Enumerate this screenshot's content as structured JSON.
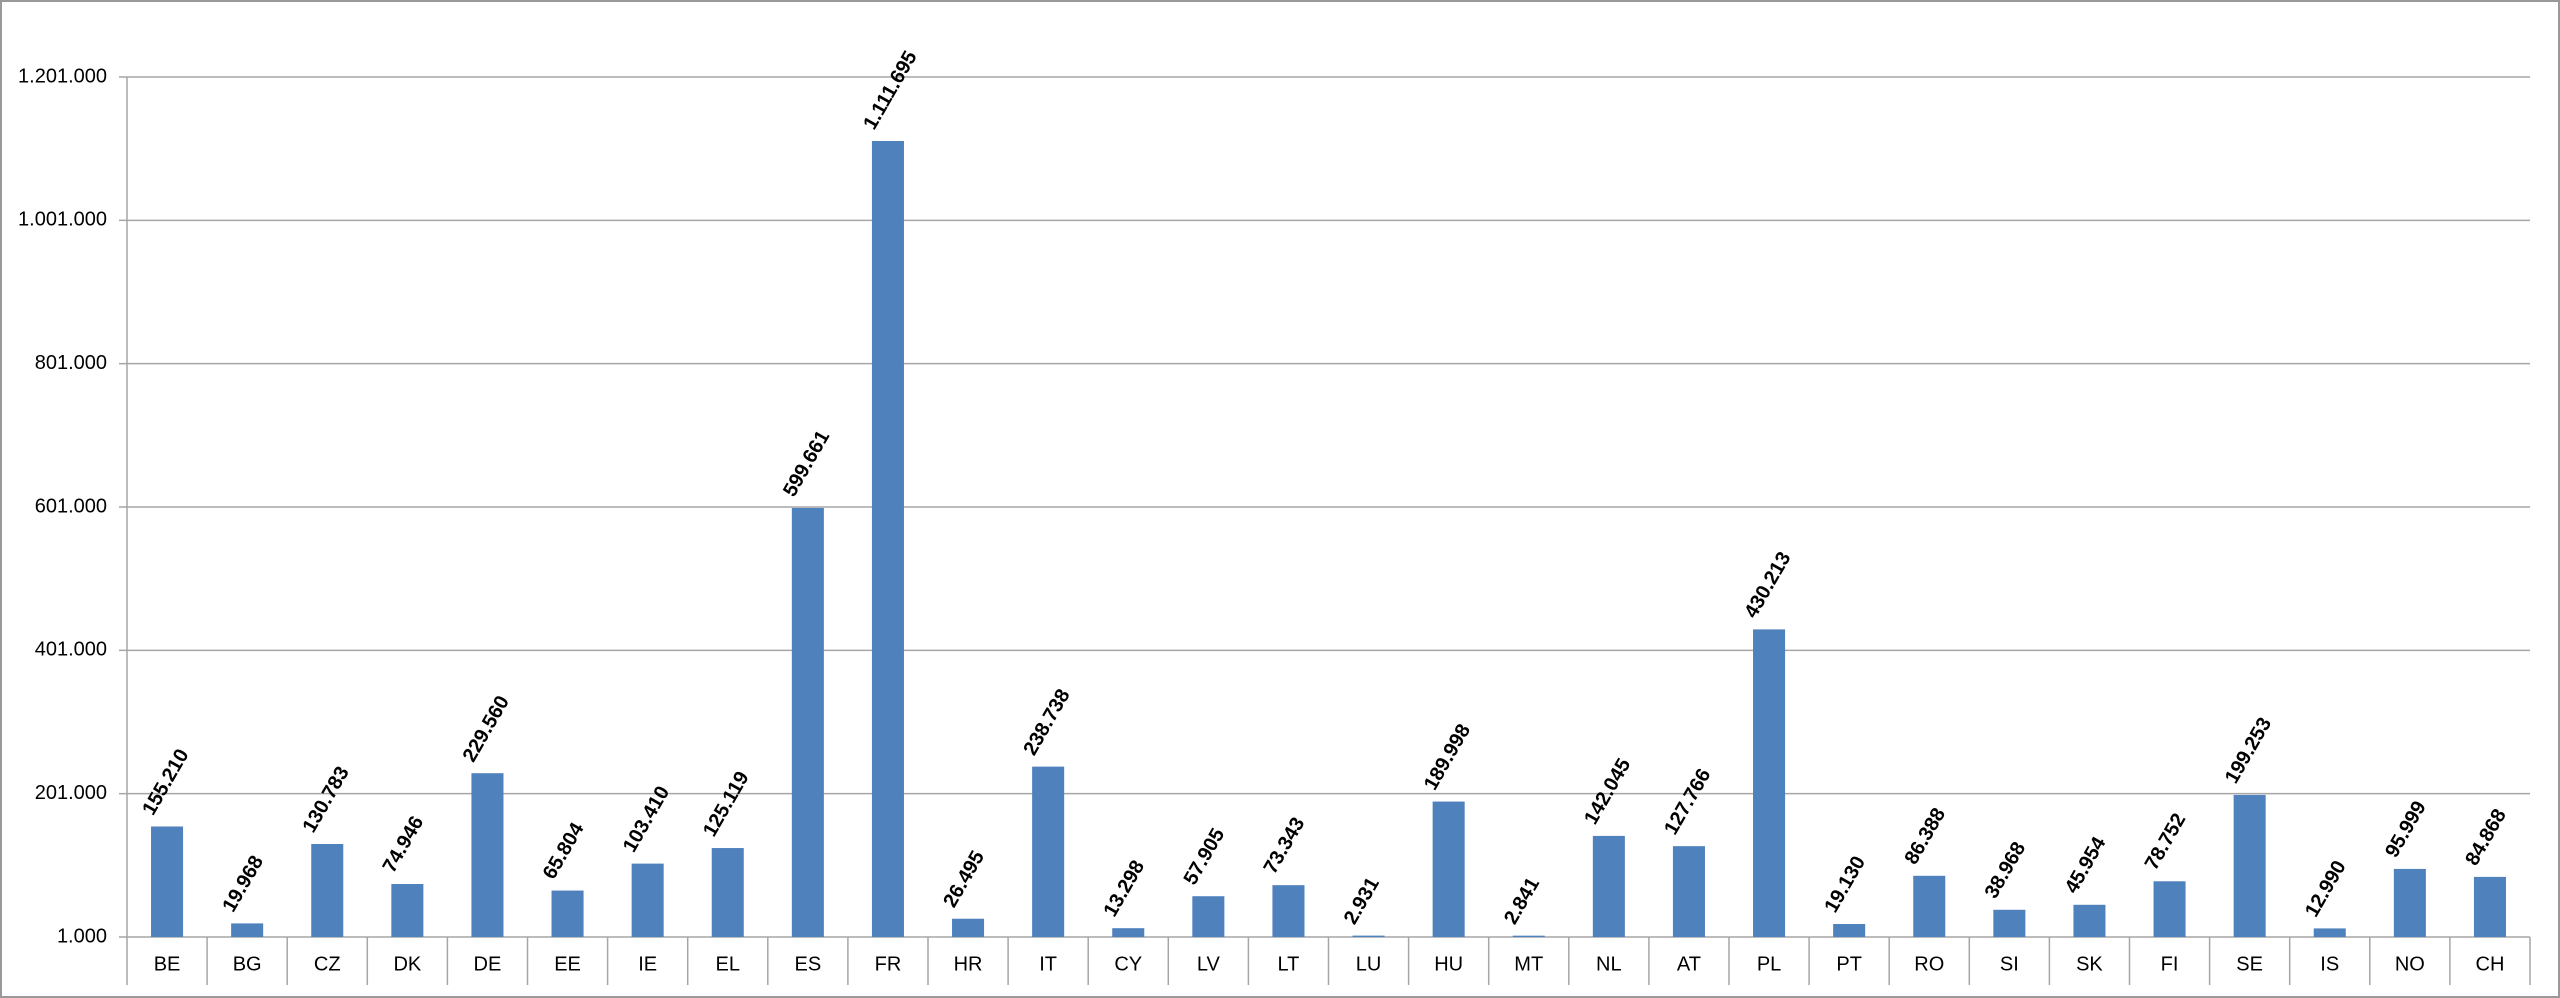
{
  "chart_data": {
    "type": "bar",
    "categories": [
      "BE",
      "BG",
      "CZ",
      "DK",
      "DE",
      "EE",
      "IE",
      "EL",
      "ES",
      "FR",
      "HR",
      "IT",
      "CY",
      "LV",
      "LT",
      "LU",
      "HU",
      "MT",
      "NL",
      "AT",
      "PL",
      "PT",
      "RO",
      "SI",
      "SK",
      "FI",
      "SE",
      "IS",
      "NO",
      "CH"
    ],
    "values": [
      155210,
      19968,
      130783,
      74946,
      229560,
      65804,
      103410,
      125119,
      599661,
      1111695,
      26495,
      238738,
      13298,
      57905,
      73343,
      2931,
      189998,
      2841,
      142045,
      127766,
      430213,
      19130,
      86388,
      38968,
      45954,
      78752,
      199253,
      12990,
      95999,
      84868
    ],
    "value_labels": [
      "155.210",
      "19.968",
      "130.783",
      "74.946",
      "229.560",
      "65.804",
      "103.410",
      "125.119",
      "599.661",
      "1.111.695",
      "26.495",
      "238.738",
      "13.298",
      "57.905",
      "73.343",
      "2.931",
      "189.998",
      "2.841",
      "142.045",
      "127.766",
      "430.213",
      "19.130",
      "86.388",
      "38.968",
      "45.954",
      "78.752",
      "199.253",
      "12.990",
      "95.999",
      "84.868"
    ],
    "color": "#4f81bd",
    "ylim": [
      1000,
      1201000
    ],
    "yticks": [
      {
        "value": 1000,
        "label": "1.000"
      },
      {
        "value": 201000,
        "label": "201.000"
      },
      {
        "value": 401000,
        "label": "401.000"
      },
      {
        "value": 601000,
        "label": "601.000"
      },
      {
        "value": 801000,
        "label": "801.000"
      },
      {
        "value": 1001000,
        "label": "1.001.000"
      },
      {
        "value": 1201000,
        "label": "1.201.000"
      }
    ],
    "grid": true
  }
}
